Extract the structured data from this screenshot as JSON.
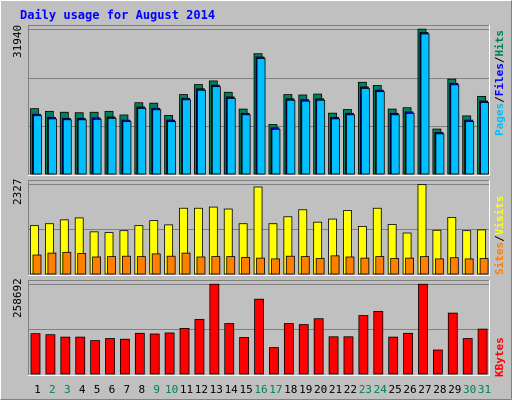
{
  "chart_data": {
    "type": "bar",
    "title": "Daily usage for August 2014",
    "days": [
      "1",
      "2",
      "3",
      "4",
      "5",
      "6",
      "7",
      "8",
      "9",
      "10",
      "11",
      "12",
      "13",
      "14",
      "15",
      "16",
      "17",
      "18",
      "19",
      "20",
      "21",
      "22",
      "23",
      "24",
      "25",
      "26",
      "27",
      "28",
      "29",
      "30",
      "31"
    ],
    "weekend_days": [
      "2",
      "3",
      "9",
      "10",
      "16",
      "17",
      "23",
      "24",
      "30",
      "31"
    ],
    "colors": {
      "hits": "#00805c",
      "files": "#0000ff",
      "pages": "#00c0ff",
      "visits": "#ffff00",
      "sites": "#ff8000",
      "kbytes": "#ff0000",
      "weekday_label": "#000000",
      "weekend_label": "#00805c"
    },
    "panels": [
      {
        "id": "usage",
        "max_label": "31940",
        "ymax": 31940,
        "legend": [
          {
            "text": "Hits",
            "color": "#00805c"
          },
          {
            "text": "Files",
            "color": "#0000ff"
          },
          {
            "text": "Pages",
            "color": "#00c0ff"
          }
        ],
        "series": [
          {
            "name": "Hits",
            "values": [
              14400,
              13800,
              13600,
              13500,
              13600,
              13800,
              13000,
              15700,
              15600,
              12900,
              17500,
              19700,
              20500,
              18000,
              14300,
              26500,
              10900,
              17500,
              17400,
              17600,
              13400,
              14200,
              20200,
              19500,
              14300,
              14600,
              31900,
              9900,
              20900,
              12800,
              17100
            ]
          },
          {
            "name": "Pages",
            "values": [
              13500,
              12800,
              12600,
              12600,
              12700,
              12900,
              12200,
              15100,
              14800,
              12200,
              17000,
              19100,
              19900,
              17300,
              13700,
              26100,
              10500,
              16900,
              16700,
              16900,
              12800,
              13700,
              19500,
              18800,
              13700,
              14000,
              31500,
              9500,
              20300,
              12200,
              16400
            ]
          }
        ]
      },
      {
        "id": "visits",
        "max_label": "2327",
        "ymax": 2327,
        "legend": [
          {
            "text": "Visits",
            "color": "#ffff00"
          },
          {
            "text": "Sites",
            "color": "#ff8000"
          }
        ],
        "series": [
          {
            "name": "Visits",
            "values": [
              1250,
              1300,
              1400,
              1450,
              1090,
              1070,
              1120,
              1250,
              1380,
              1270,
              1700,
              1700,
              1730,
              1680,
              1300,
              2250,
              1300,
              1480,
              1660,
              1340,
              1420,
              1640,
              1230,
              1700,
              1280,
              1060,
              2310,
              1130,
              1460,
              1120,
              1140
            ]
          },
          {
            "name": "Sites",
            "values": [
              490,
              540,
              560,
              530,
              440,
              450,
              460,
              450,
              520,
              460,
              540,
              440,
              450,
              450,
              430,
              410,
              390,
              460,
              450,
              400,
              470,
              440,
              410,
              450,
              400,
              410,
              450,
              390,
              420,
              390,
              400
            ]
          }
        ]
      },
      {
        "id": "kbytes",
        "max_label": "258692",
        "ymax": 258692,
        "legend": [
          {
            "text": "KBytes",
            "color": "#ff0000"
          }
        ],
        "series": [
          {
            "name": "KBytes",
            "values": [
              116000,
              113000,
              106000,
              106000,
              96000,
              102000,
              100000,
              117000,
              115000,
              118000,
              131000,
              157000,
              258000,
              145000,
              105000,
              215000,
              76000,
              145000,
              142000,
              159000,
              107000,
              107000,
              168000,
              180000,
              106000,
              117000,
              258000,
              69000,
              175000,
              102000,
              129000
            ]
          }
        ]
      }
    ]
  }
}
